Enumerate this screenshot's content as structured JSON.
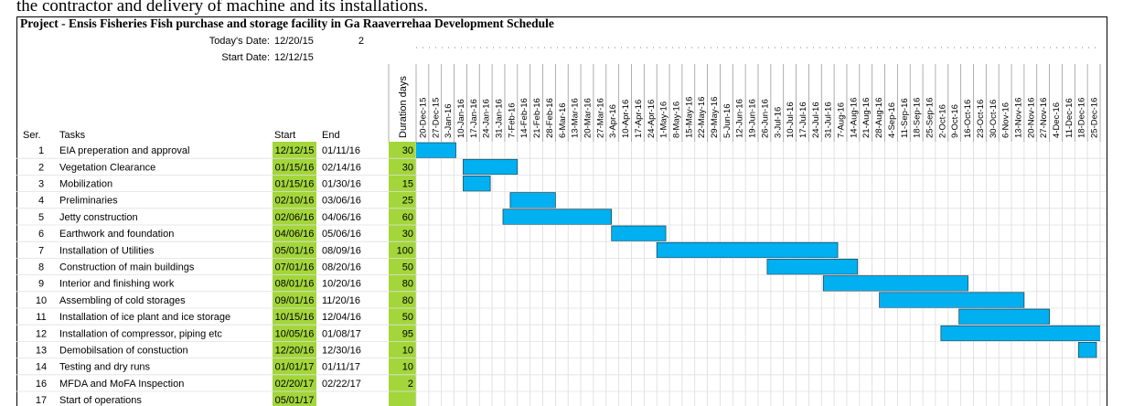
{
  "document_text": "the contractor and delivery of machine and its installations.",
  "header": {
    "title": "Project  - Ensis Fisheries Fish purchase and storage facility in Ga Raaverrehaa  Development Schedule",
    "today_label": "Today's Date:",
    "today": "12/20/15",
    "today_extra": 2,
    "start_label": "Start Date:",
    "start": "12/12/15"
  },
  "columns": {
    "ser": "Ser.",
    "tasks": "Tasks",
    "start": "Start",
    "end": "End",
    "duration": "Duration days"
  },
  "weeks": [
    "20-Dec-15",
    "27-Dec-15",
    "3-Jan-16",
    "10-Jan-16",
    "17-Jan-16",
    "24-Jan-16",
    "31-Jan-16",
    "7-Feb-16",
    "14-Feb-16",
    "21-Feb-16",
    "28-Feb-16",
    "6-Mar-16",
    "13-Mar-16",
    "20-Mar-16",
    "27-Mar-16",
    "3-Apr-16",
    "10-Apr-16",
    "17-Apr-16",
    "24-Apr-16",
    "1-May-16",
    "8-May-16",
    "15-May-16",
    "22-May-16",
    "29-May-16",
    "5-Jun-16",
    "12-Jun-16",
    "19-Jun-16",
    "26-Jun-16",
    "3-Jul-16",
    "10-Jul-16",
    "17-Jul-16",
    "24-Jul-16",
    "31-Jul-16",
    "7-Aug-16",
    "14-Aug-16",
    "21-Aug-16",
    "28-Aug-16",
    "4-Sep-16",
    "11-Sep-16",
    "18-Sep-16",
    "25-Sep-16",
    "2-Oct-16",
    "9-Oct-16",
    "16-Oct-16",
    "23-Oct-16",
    "30-Oct-16",
    "6-Nov-16",
    "13-Nov-16",
    "20-Nov-16",
    "27-Nov-16",
    "4-Dec-16",
    "11-Dec-16",
    "18-Dec-16",
    "25-Dec-16"
  ],
  "rows": [
    {
      "ser": 1,
      "task": "EIA preperation and approval",
      "start": "12/12/15",
      "end": "01/11/16",
      "duration": 30
    },
    {
      "ser": 2,
      "task": "Vegetation Clearance",
      "start": "01/15/16",
      "end": "02/14/16",
      "duration": 30
    },
    {
      "ser": 3,
      "task": "Mobilization",
      "start": "01/15/16",
      "end": "01/30/16",
      "duration": 15
    },
    {
      "ser": 4,
      "task": "Preliminaries",
      "start": "02/10/16",
      "end": "03/06/16",
      "duration": 25
    },
    {
      "ser": 5,
      "task": "Jetty construction",
      "start": "02/06/16",
      "end": "04/06/16",
      "duration": 60
    },
    {
      "ser": 6,
      "task": "Earthwork and foundation",
      "start": "04/06/16",
      "end": "05/06/16",
      "duration": 30
    },
    {
      "ser": 7,
      "task": "Installation of Utilities",
      "start": "05/01/16",
      "end": "08/09/16",
      "duration": 100
    },
    {
      "ser": 8,
      "task": "Construction of main buildings",
      "start": "07/01/16",
      "end": "08/20/16",
      "duration": 50
    },
    {
      "ser": 9,
      "task": "Interior and finishing work",
      "start": "08/01/16",
      "end": "10/20/16",
      "duration": 80
    },
    {
      "ser": 10,
      "task": "Assembling of cold storages",
      "start": "09/01/16",
      "end": "11/20/16",
      "duration": 80
    },
    {
      "ser": 11,
      "task": "Installation of ice plant and ice storage",
      "start": "10/15/16",
      "end": "12/04/16",
      "duration": 50
    },
    {
      "ser": 12,
      "task": "Installation of compressor, piping etc",
      "start": "10/05/16",
      "end": "01/08/17",
      "duration": 95
    },
    {
      "ser": 13,
      "task": "Demobilsation of constuction",
      "start": "12/20/16",
      "end": "12/30/16",
      "duration": 10
    },
    {
      "ser": 14,
      "task": "Testing and dry runs",
      "start": "01/01/17",
      "end": "01/11/17",
      "duration": 10
    },
    {
      "ser": 16,
      "task": "MFDA and MoFA Inspection",
      "start": "02/20/17",
      "end": "02/22/17",
      "duration": 2
    },
    {
      "ser": 17,
      "task": "Start of operations",
      "start": "05/01/17"
    }
  ]
}
